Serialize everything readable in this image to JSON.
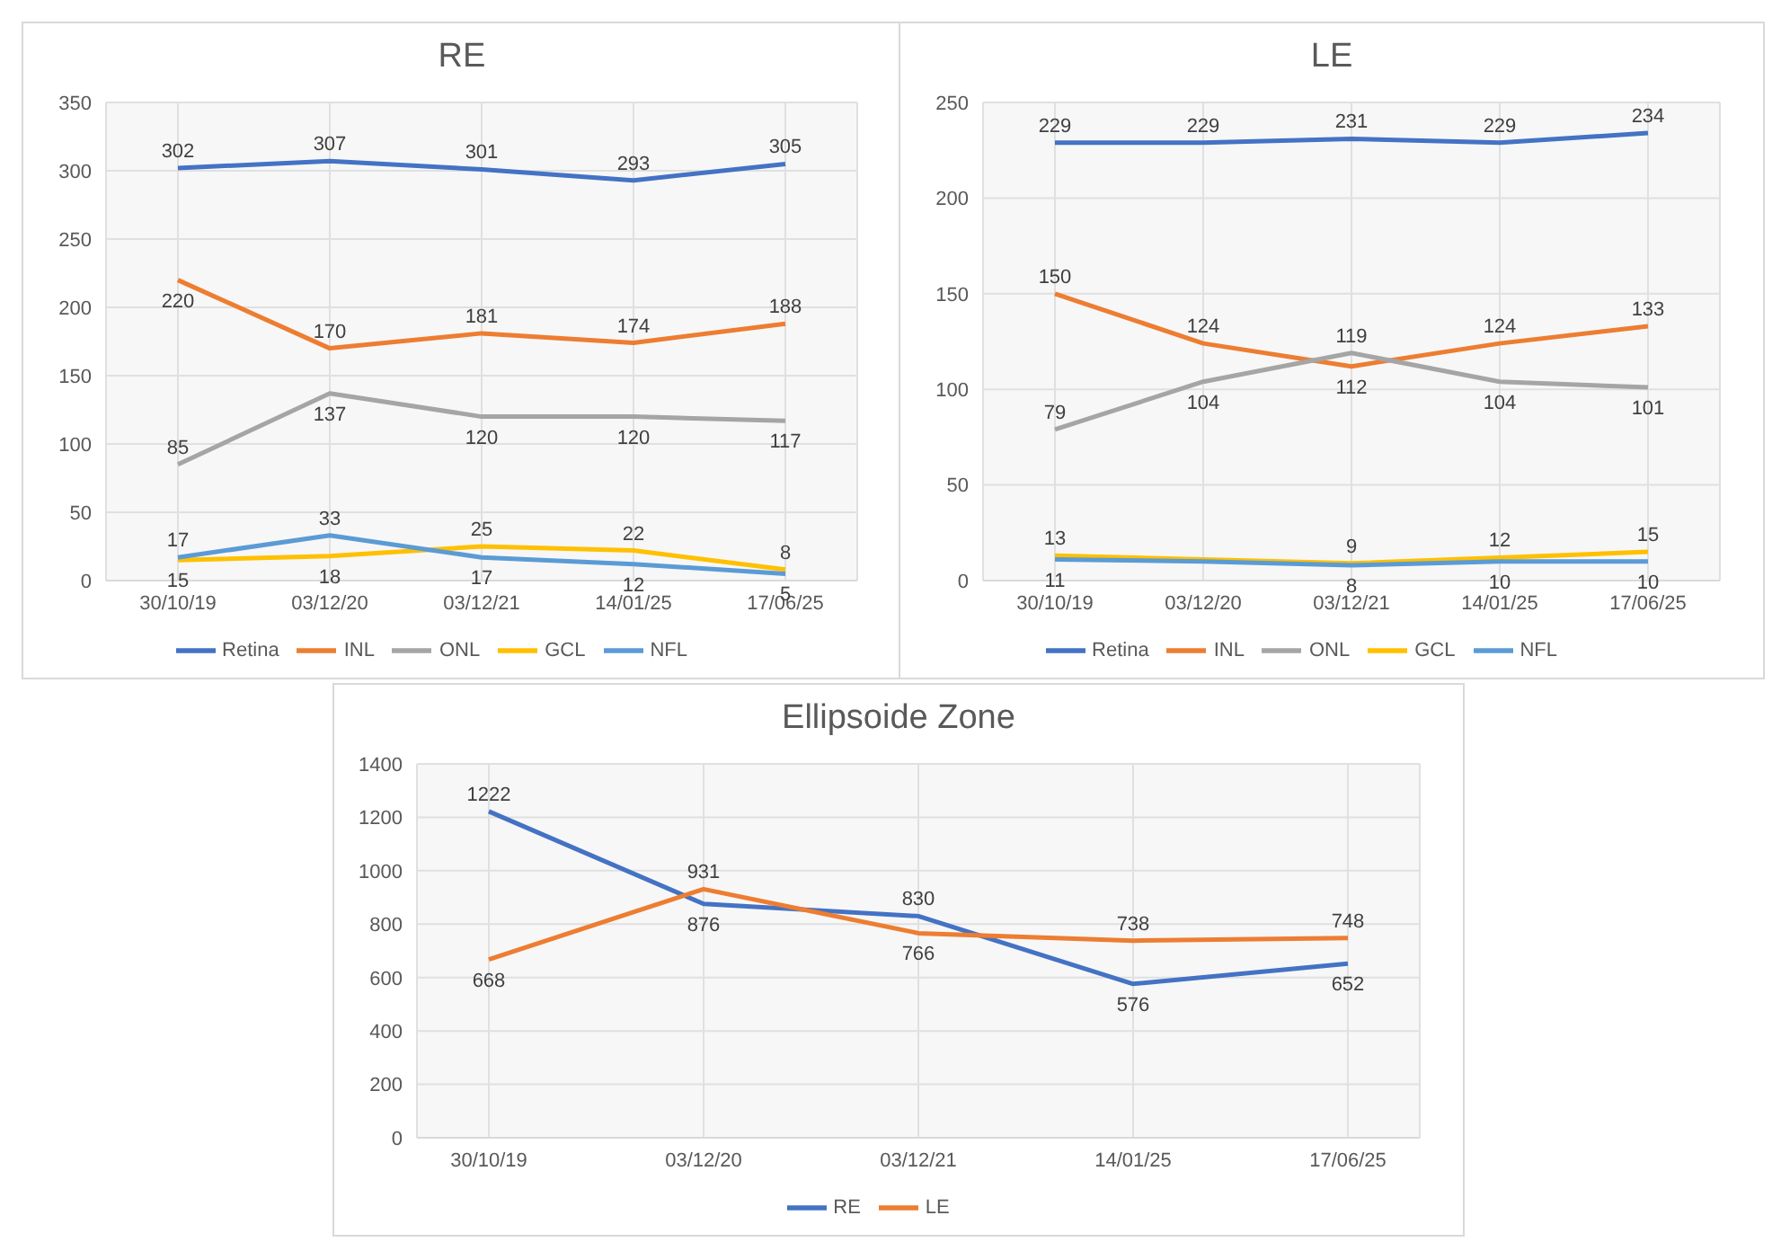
{
  "chart_data": [
    {
      "type": "line",
      "title": "RE",
      "categories": [
        "30/10/19",
        "03/12/20",
        "03/12/21",
        "14/01/25",
        "17/06/25"
      ],
      "ylim": [
        0,
        350
      ],
      "yticks": [
        0,
        50,
        100,
        150,
        200,
        250,
        300,
        350
      ],
      "grid": true,
      "legend": "bottom",
      "data_labels": true,
      "marker": "none",
      "series": [
        {
          "name": "Retina",
          "color": "#4472c4",
          "values": [
            302,
            307,
            301,
            293,
            305
          ]
        },
        {
          "name": "INL",
          "color": "#ed7d31",
          "values": [
            220,
            170,
            181,
            174,
            188
          ]
        },
        {
          "name": "ONL",
          "color": "#a5a5a5",
          "values": [
            85,
            137,
            120,
            120,
            117
          ]
        },
        {
          "name": "GCL",
          "color": "#ffc000",
          "values": [
            15,
            18,
            25,
            22,
            8
          ]
        },
        {
          "name": "NFL",
          "color": "#5b9bd5",
          "values": [
            17,
            33,
            17,
            12,
            5
          ]
        }
      ]
    },
    {
      "type": "line",
      "title": "LE",
      "categories": [
        "30/10/19",
        "03/12/20",
        "03/12/21",
        "14/01/25",
        "17/06/25"
      ],
      "ylim": [
        0,
        250
      ],
      "yticks": [
        0,
        50,
        100,
        150,
        200,
        250
      ],
      "grid": true,
      "legend": "bottom",
      "data_labels": true,
      "marker": "none",
      "series": [
        {
          "name": "Retina",
          "color": "#4472c4",
          "values": [
            229,
            229,
            231,
            229,
            234
          ]
        },
        {
          "name": "INL",
          "color": "#ed7d31",
          "values": [
            150,
            124,
            112,
            124,
            133
          ]
        },
        {
          "name": "ONL",
          "color": "#a5a5a5",
          "values": [
            79,
            104,
            119,
            104,
            101
          ]
        },
        {
          "name": "GCL",
          "color": "#ffc000",
          "values": [
            13,
            11,
            9,
            12,
            15
          ],
          "value_labels": [
            "13",
            null,
            "9",
            "12",
            "15"
          ]
        },
        {
          "name": "NFL",
          "color": "#5b9bd5",
          "values": [
            11,
            10,
            8,
            10,
            10
          ],
          "value_labels": [
            "11",
            null,
            "8",
            "10",
            "10"
          ]
        }
      ]
    },
    {
      "type": "line",
      "title": "Ellipsoide Zone",
      "categories": [
        "30/10/19",
        "03/12/20",
        "03/12/21",
        "14/01/25",
        "17/06/25"
      ],
      "ylim": [
        0,
        1400
      ],
      "yticks": [
        0,
        200,
        400,
        600,
        800,
        1000,
        1200,
        1400
      ],
      "grid": true,
      "legend": "bottom",
      "data_labels": true,
      "marker": "none",
      "series": [
        {
          "name": "RE",
          "color": "#4472c4",
          "values": [
            1222,
            876,
            830,
            576,
            652
          ]
        },
        {
          "name": "LE",
          "color": "#ed7d31",
          "values": [
            668,
            931,
            766,
            738,
            748
          ]
        }
      ]
    }
  ]
}
